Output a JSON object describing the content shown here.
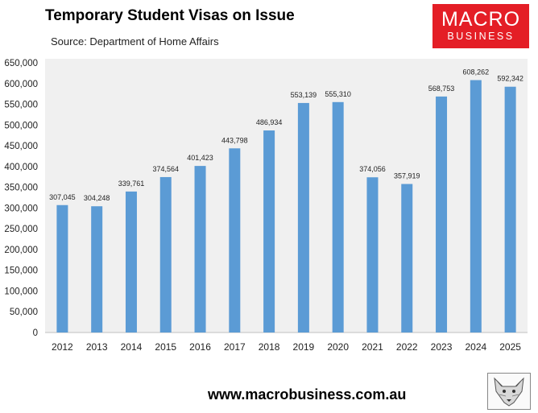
{
  "header": {
    "title": "Temporary Student Visas on Issue",
    "subtitle": "Source: Department of Home Affairs"
  },
  "logo": {
    "line1": "MACRO",
    "line2": "BUSINESS",
    "color": "#e41e26"
  },
  "footer": {
    "website": "www.macrobusiness.com.au"
  },
  "colors": {
    "bar": "#5b9bd5",
    "plot_background": "#f0f0f0"
  },
  "chart_data": {
    "type": "bar",
    "title": "Temporary Student Visas on Issue",
    "subtitle": "Source: Department of Home Affairs",
    "categories": [
      "2012",
      "2013",
      "2014",
      "2015",
      "2016",
      "2017",
      "2018",
      "2019",
      "2020",
      "2021",
      "2022",
      "2023",
      "2024",
      "2025"
    ],
    "values": [
      307045,
      304248,
      339761,
      374564,
      401423,
      443798,
      486934,
      553139,
      555310,
      374056,
      357919,
      568753,
      608262,
      592342
    ],
    "value_labels": [
      "307,045",
      "304,248",
      "339,761",
      "374,564",
      "401,423",
      "443,798",
      "486,934",
      "553,139",
      "555,310",
      "374,056",
      "357,919",
      "568,753",
      "608,262",
      "592,342"
    ],
    "ylim": [
      0,
      650000
    ],
    "yticks": [
      0,
      50000,
      100000,
      150000,
      200000,
      250000,
      300000,
      350000,
      400000,
      450000,
      500000,
      550000,
      600000,
      650000
    ],
    "ytick_labels": [
      "0",
      "50,000",
      "100,000",
      "150,000",
      "200,000",
      "250,000",
      "300,000",
      "350,000",
      "400,000",
      "450,000",
      "500,000",
      "550,000",
      "600,000",
      "650,000"
    ],
    "xlabel": "",
    "ylabel": "",
    "grid": false,
    "legend": "none"
  }
}
